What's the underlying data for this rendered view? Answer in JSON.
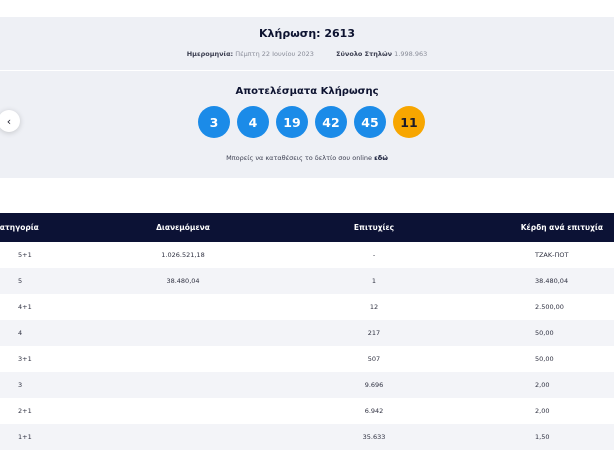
{
  "draw": {
    "title": "Κλήρωση: 2613",
    "date_label": "Ημερομηνία:",
    "date_value": "Πέμπτη 22 Ιουνίου 2023",
    "columns_label": "Σύνολο Στηλών",
    "columns_value": "1.998.963"
  },
  "results": {
    "title": "Αποτελέσματα Κλήρωσης",
    "numbers": [
      "3",
      "4",
      "19",
      "42",
      "45"
    ],
    "bonus": "11",
    "online_text": "Μπορείς να καταθέσεις το δελτίο σου online",
    "online_link": "εδώ"
  },
  "nav": {
    "prev_icon": "chevron-left-icon",
    "prev_glyph": "‹"
  },
  "colors": {
    "ball": "#1b8be8",
    "bonus_ball": "#f7a600",
    "header_bg": "#0c1235"
  },
  "table": {
    "headers": [
      "Κατηγορία",
      "Διανεμόμενα",
      "Επιτυχίες",
      "Κέρδη ανά επιτυχία"
    ],
    "rows": [
      [
        "5+1",
        "1.026.521,18",
        "-",
        "ΤΖΑΚ-ΠΟΤ"
      ],
      [
        "5",
        "38.480,04",
        "1",
        "38.480,04"
      ],
      [
        "4+1",
        "",
        "12",
        "2.500,00"
      ],
      [
        "4",
        "",
        "217",
        "50,00"
      ],
      [
        "3+1",
        "",
        "507",
        "50,00"
      ],
      [
        "3",
        "",
        "9.696",
        "2,00"
      ],
      [
        "2+1",
        "",
        "6.942",
        "2,00"
      ],
      [
        "1+1",
        "",
        "35.633",
        "1,50"
      ]
    ]
  }
}
